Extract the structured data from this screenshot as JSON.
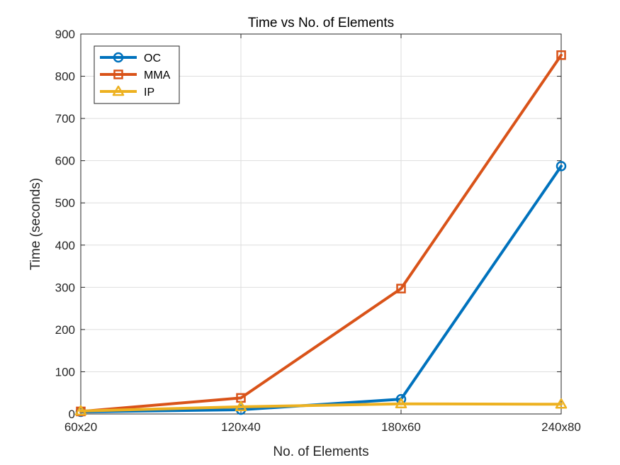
{
  "chart_data": {
    "type": "line",
    "title": "Time vs No. of Elements",
    "xlabel": "No. of Elements",
    "ylabel": "Time (seconds)",
    "categories": [
      "60x20",
      "120x40",
      "180x60",
      "240x80"
    ],
    "ylim": [
      0,
      900
    ],
    "yticks": [
      0,
      100,
      200,
      300,
      400,
      500,
      600,
      700,
      800,
      900
    ],
    "grid": true,
    "legend_position": "top-left",
    "series": [
      {
        "name": "OC",
        "marker": "circle",
        "color": "#0072BD",
        "values": [
          5,
          10,
          35,
          587
        ]
      },
      {
        "name": "MMA",
        "marker": "square",
        "color": "#D95319",
        "values": [
          6,
          38,
          297,
          850
        ]
      },
      {
        "name": "IP",
        "marker": "triangle",
        "color": "#EDB120",
        "values": [
          7,
          17,
          24,
          23
        ]
      }
    ]
  }
}
